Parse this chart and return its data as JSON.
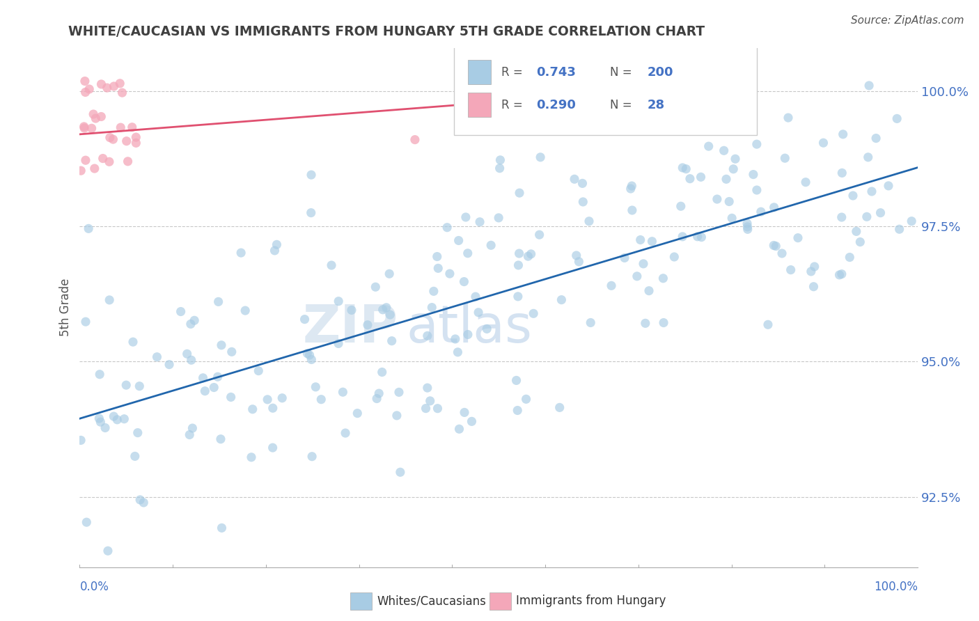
{
  "title": "WHITE/CAUCASIAN VS IMMIGRANTS FROM HUNGARY 5TH GRADE CORRELATION CHART",
  "source": "Source: ZipAtlas.com",
  "ylabel": "5th Grade",
  "yticks": [
    92.5,
    95.0,
    97.5,
    100.0
  ],
  "ytick_labels": [
    "92.5%",
    "95.0%",
    "97.5%",
    "100.0%"
  ],
  "xlim": [
    0.0,
    1.0
  ],
  "ylim": [
    91.2,
    100.8
  ],
  "blue_R": 0.743,
  "blue_N": 200,
  "pink_R": 0.29,
  "pink_N": 28,
  "blue_color": "#a8cce4",
  "pink_color": "#f4a7b9",
  "blue_line_color": "#2166ac",
  "pink_line_color": "#e05070",
  "watermark_zip": "ZIP",
  "watermark_atlas": "atlas",
  "legend_label_blue": "Whites/Caucasians",
  "legend_label_pink": "Immigrants from Hungary",
  "title_color": "#404040",
  "axis_label_color": "#4472c4",
  "background_color": "#ffffff",
  "grid_color": "#c8c8c8"
}
